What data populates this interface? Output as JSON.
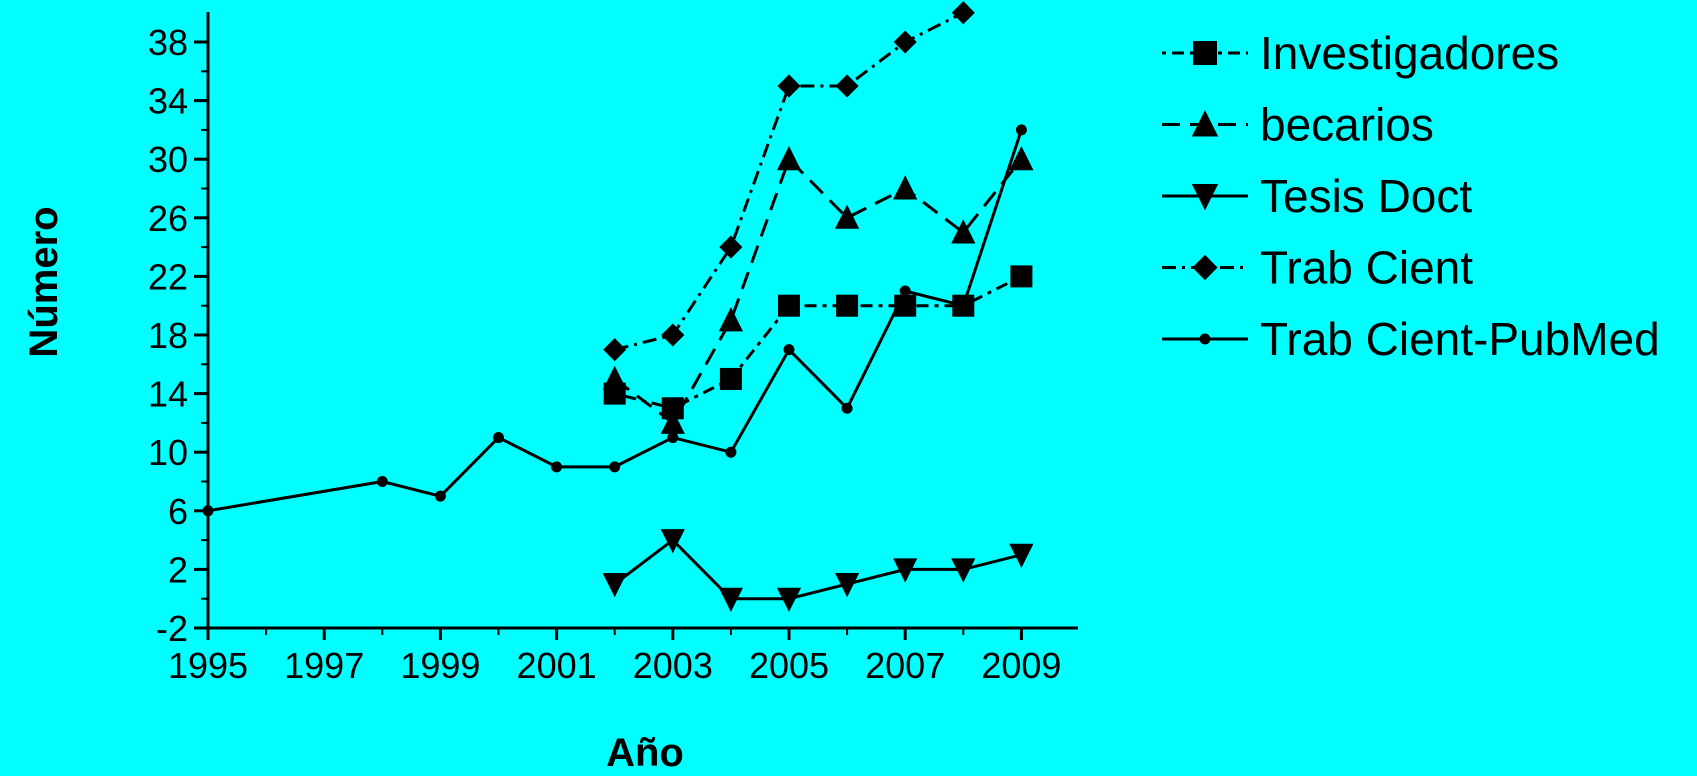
{
  "chart_data": {
    "type": "line",
    "title": "",
    "xlabel": "Año",
    "ylabel": "Número",
    "xlim": [
      1995,
      2010
    ],
    "ylim": [
      -2,
      40
    ],
    "x_ticks": [
      1995,
      1997,
      1999,
      2001,
      2003,
      2005,
      2007,
      2009
    ],
    "y_ticks": [
      -2,
      2,
      6,
      10,
      14,
      18,
      22,
      26,
      30,
      34,
      38
    ],
    "grid": false,
    "legend_position": "top-right outside",
    "background": "#00FFFF",
    "series": [
      {
        "name": "Investigadores",
        "marker": "square",
        "line_style": "dotted-dashed",
        "color": "#000000",
        "points": [
          [
            2002,
            14
          ],
          [
            2003,
            13
          ],
          [
            2004,
            15
          ],
          [
            2005,
            20
          ],
          [
            2006,
            20
          ],
          [
            2007,
            20
          ],
          [
            2008,
            20
          ],
          [
            2009,
            22
          ]
        ]
      },
      {
        "name": "becarios",
        "marker": "triangle-up",
        "line_style": "dashed",
        "color": "#000000",
        "points": [
          [
            2002,
            15
          ],
          [
            2003,
            12
          ],
          [
            2004,
            19
          ],
          [
            2005,
            30
          ],
          [
            2006,
            26
          ],
          [
            2007,
            28
          ],
          [
            2008,
            25
          ],
          [
            2009,
            30
          ]
        ]
      },
      {
        "name": "Tesis Doct",
        "marker": "triangle-down",
        "line_style": "solid",
        "color": "#000000",
        "points": [
          [
            2002,
            1
          ],
          [
            2003,
            4
          ],
          [
            2004,
            0
          ],
          [
            2005,
            0
          ],
          [
            2006,
            1
          ],
          [
            2007,
            2
          ],
          [
            2008,
            2
          ],
          [
            2009,
            3
          ]
        ]
      },
      {
        "name": "Trab Cient",
        "marker": "diamond",
        "line_style": "dash-dot",
        "color": "#000000",
        "points": [
          [
            2002,
            17
          ],
          [
            2003,
            18
          ],
          [
            2004,
            24
          ],
          [
            2005,
            35
          ],
          [
            2006,
            35
          ],
          [
            2007,
            38
          ],
          [
            2008,
            40
          ]
        ]
      },
      {
        "name": "Trab Cient-PubMed",
        "marker": "circle",
        "line_style": "solid",
        "color": "#000000",
        "points": [
          [
            1995,
            6
          ],
          [
            1998,
            8
          ],
          [
            1999,
            7
          ],
          [
            2000,
            11
          ],
          [
            2001,
            9
          ],
          [
            2002,
            9
          ],
          [
            2003,
            11
          ],
          [
            2004,
            10
          ],
          [
            2005,
            17
          ],
          [
            2006,
            13
          ],
          [
            2007,
            21
          ],
          [
            2008,
            20
          ],
          [
            2009,
            32
          ]
        ]
      }
    ]
  }
}
